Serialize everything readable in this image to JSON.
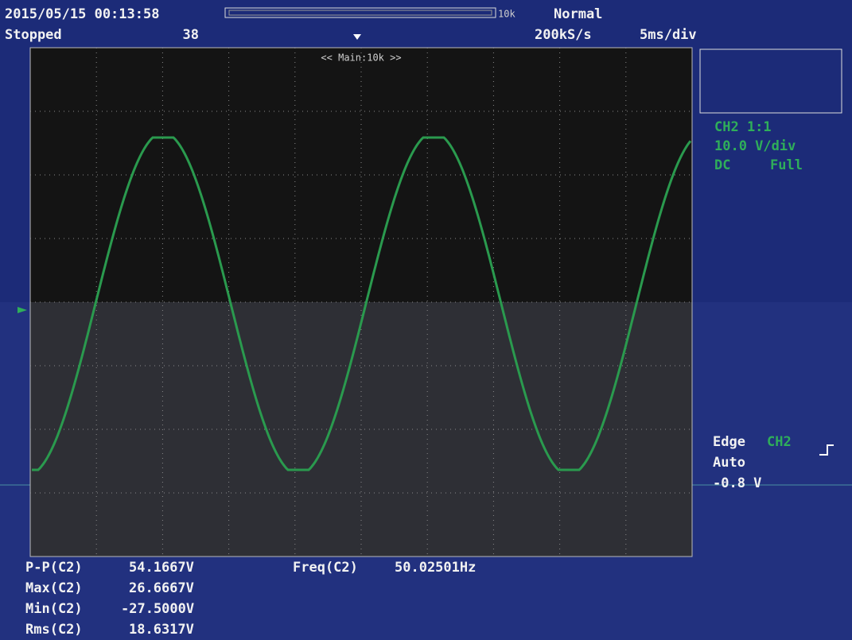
{
  "header": {
    "datetime": "2015/05/15 00:13:58",
    "status": "Stopped",
    "count": "38",
    "record_length": "10k",
    "mode": "Normal",
    "sample_rate": "200kS/s",
    "timebase": "5ms/div",
    "zoom": "<< Main:10k >>"
  },
  "channel": {
    "name": "CH2 1:1",
    "scale": "10.0 V/div",
    "coupling": "DC",
    "bandwidth": "Full"
  },
  "trigger": {
    "type": "Edge",
    "source": "CH2",
    "mode": "Auto",
    "level": "-0.8 V"
  },
  "measurements": [
    {
      "label": "P-P(C2)",
      "value": "54.1667V"
    },
    {
      "label": "Max(C2)",
      "value": "26.6667V"
    },
    {
      "label": "Min(C2)",
      "value": "-27.5000V"
    },
    {
      "label": "Rms(C2)",
      "value": "18.6317V"
    }
  ],
  "frequency": {
    "label": "Freq(C2)",
    "value": "50.02501Hz"
  }
}
